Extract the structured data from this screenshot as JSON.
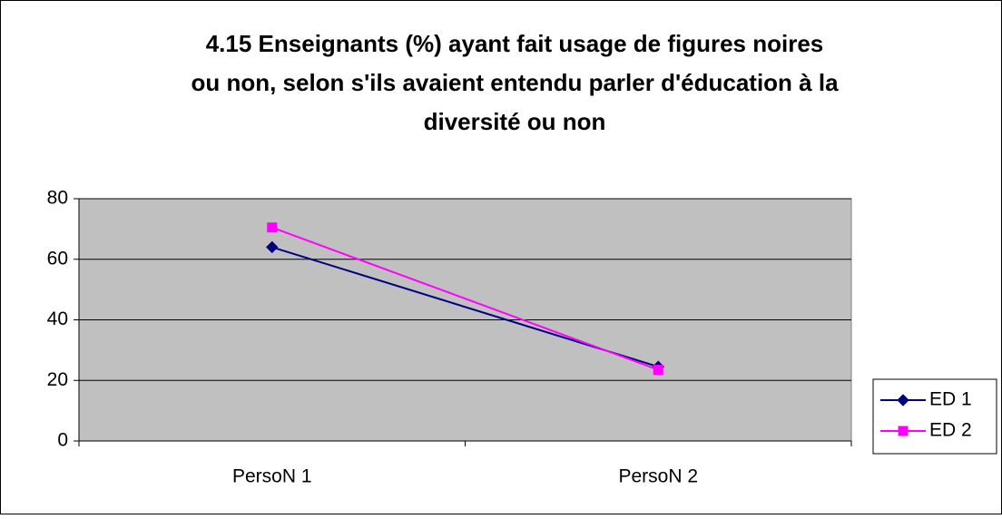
{
  "chart_data": {
    "type": "line",
    "title": [
      "4.15 Enseignants (%) ayant fait usage de figures noires",
      "ou non, selon s'ils avaient entendu parler d'éducation à la",
      "diversité ou non"
    ],
    "categories": [
      "PersoN 1",
      "PersoN 2"
    ],
    "series": [
      {
        "name": "ED 1",
        "color": "#000080",
        "marker": "diamond",
        "values": [
          64,
          24.5
        ]
      },
      {
        "name": "ED 2",
        "color": "#ff00ff",
        "marker": "square",
        "values": [
          70.5,
          23.5
        ]
      }
    ],
    "ylim": [
      0,
      80
    ],
    "yticks": [
      0,
      20,
      40,
      60,
      80
    ],
    "grid": true,
    "legend": "right",
    "plot_background": "#c0c0c0"
  }
}
